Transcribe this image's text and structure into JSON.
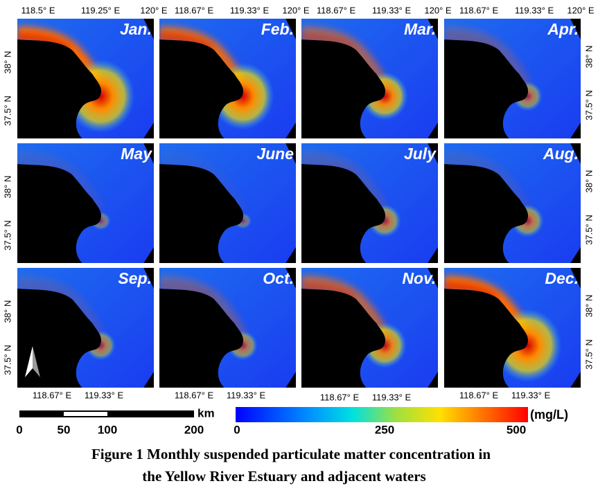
{
  "panels": [
    {
      "label": "Jan."
    },
    {
      "label": "Feb."
    },
    {
      "label": "Mar."
    },
    {
      "label": "Apr."
    },
    {
      "label": "May"
    },
    {
      "label": "June"
    },
    {
      "label": "July"
    },
    {
      "label": "Aug."
    },
    {
      "label": "Sep."
    },
    {
      "label": "Oct."
    },
    {
      "label": "Nov."
    },
    {
      "label": "Dec."
    }
  ],
  "top_axis": {
    "first_column": [
      "118.5° E",
      "119.25° E",
      "120° E"
    ],
    "other_columns": [
      "118.67° E",
      "119.33° E",
      "120° E"
    ]
  },
  "left_axis": [
    "38° N",
    "37.5° N"
  ],
  "right_axis": [
    "38° N",
    "37.5° N"
  ],
  "bottom_axis": [
    "118.67° E",
    "119.33° E"
  ],
  "north_arrow": "N",
  "scale_bar": {
    "unit": "km",
    "labels": [
      "0",
      "50",
      "100",
      "200"
    ]
  },
  "colorbar": {
    "unit": "(mg/L)",
    "labels": [
      "0",
      "250",
      "500"
    ]
  },
  "caption": [
    "Figure 1  Monthly suspended particulate matter concentration in",
    "the Yellow River Estuary and adjacent waters"
  ]
}
